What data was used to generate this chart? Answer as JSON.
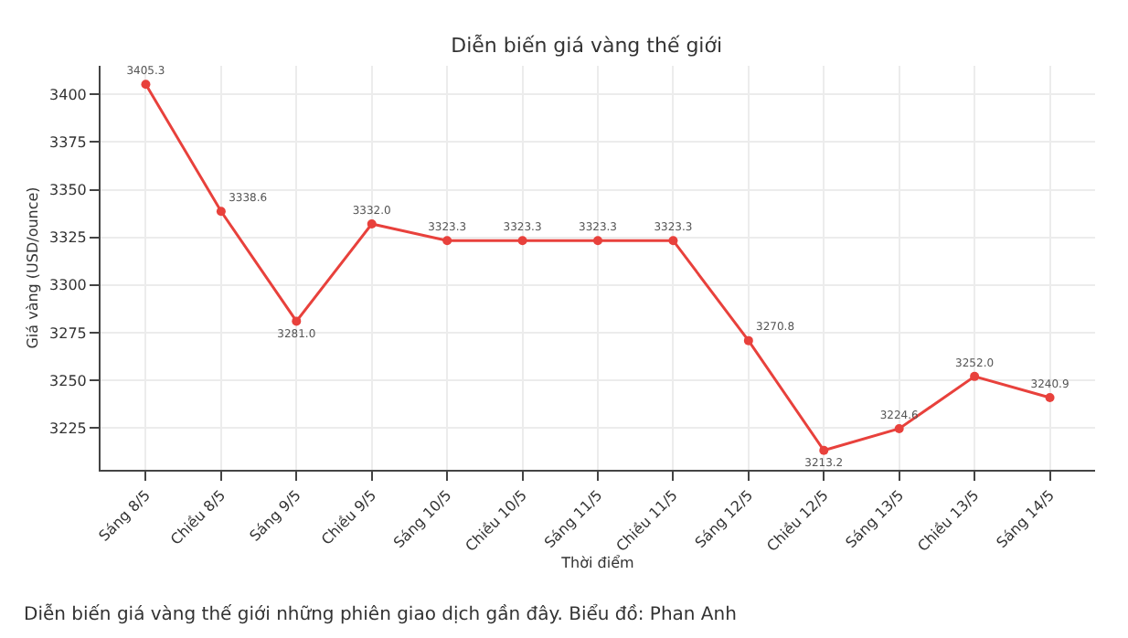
{
  "chart_data": {
    "type": "line",
    "title": "Diễn biến giá vàng thế giới",
    "xlabel": "Thời điểm",
    "ylabel": "Giá vàng (USD/ounce)",
    "categories": [
      "Sáng 8/5",
      "Chiều 8/5",
      "Sáng 9/5",
      "Chiều 9/5",
      "Sáng 10/5",
      "Chiều 10/5",
      "Sáng 11/5",
      "Chiều 11/5",
      "Sáng 12/5",
      "Chiều 12/5",
      "Sáng 13/5",
      "Chiều 13/5",
      "Sáng 14/5"
    ],
    "series": [
      {
        "color": "#e8413c",
        "values": [
          3405.3,
          3338.6,
          3281.0,
          3332.0,
          3323.3,
          3323.3,
          3323.3,
          3323.3,
          3270.8,
          3213.2,
          3224.6,
          3252.0,
          3240.9
        ]
      }
    ],
    "ylim": [
      3203,
      3415
    ],
    "yticks": [
      3225,
      3250,
      3275,
      3300,
      3325,
      3350,
      3375,
      3400
    ],
    "grid": true,
    "marker": "circle",
    "line_style": "solid",
    "value_labels": [
      "3405.3",
      "3338.6",
      "3281.0",
      "3332.0",
      "3323.3",
      "3323.3",
      "3323.3",
      "3323.3",
      "3270.8",
      "3213.2",
      "3224.6",
      "3252.0",
      "3240.9"
    ],
    "annotations": [
      "Diễn biến giá vàng thế giới những phiên giao dịch gần đây. Biểu đồ: Phan Anh"
    ]
  }
}
